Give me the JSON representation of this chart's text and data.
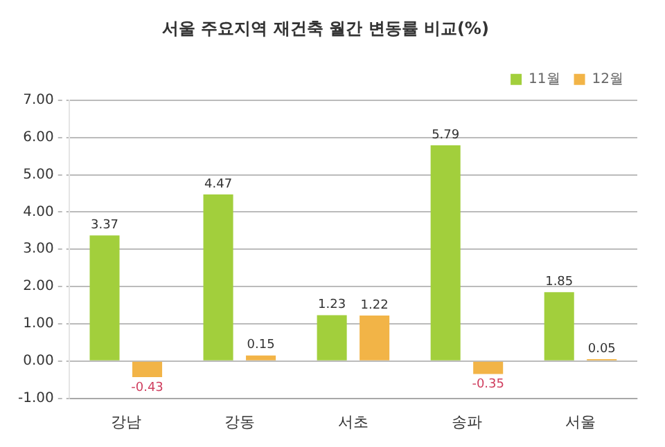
{
  "chart_data": {
    "type": "bar",
    "title": "서울 주요지역 재건축 월간 변동률 비교(%)",
    "categories": [
      "강남",
      "강동",
      "서초",
      "송파",
      "서울"
    ],
    "series": [
      {
        "name": "11월",
        "color": "#a2cf3c",
        "values": [
          3.37,
          4.47,
          1.23,
          5.79,
          1.85
        ],
        "value_labels": [
          "3.37",
          "4.47",
          "1.23",
          "5.79",
          "1.85"
        ]
      },
      {
        "name": "12월",
        "color": "#f2b447",
        "values": [
          -0.43,
          0.15,
          1.22,
          -0.35,
          0.05
        ],
        "value_labels": [
          "-0.43",
          "0.15",
          "1.22",
          "-0.35",
          "0.05"
        ]
      }
    ],
    "ylim": [
      -1,
      7
    ],
    "yticks": [
      {
        "value": -1,
        "label": "-1.00"
      },
      {
        "value": 0,
        "label": "0.00"
      },
      {
        "value": 1,
        "label": "1.00"
      },
      {
        "value": 2,
        "label": "2.00"
      },
      {
        "value": 3,
        "label": "3.00"
      },
      {
        "value": 4,
        "label": "4.00"
      },
      {
        "value": 5,
        "label": "5.00"
      },
      {
        "value": 6,
        "label": "6.00"
      },
      {
        "value": 7,
        "label": "7.00"
      }
    ],
    "grid": "y",
    "legend": "top right"
  }
}
